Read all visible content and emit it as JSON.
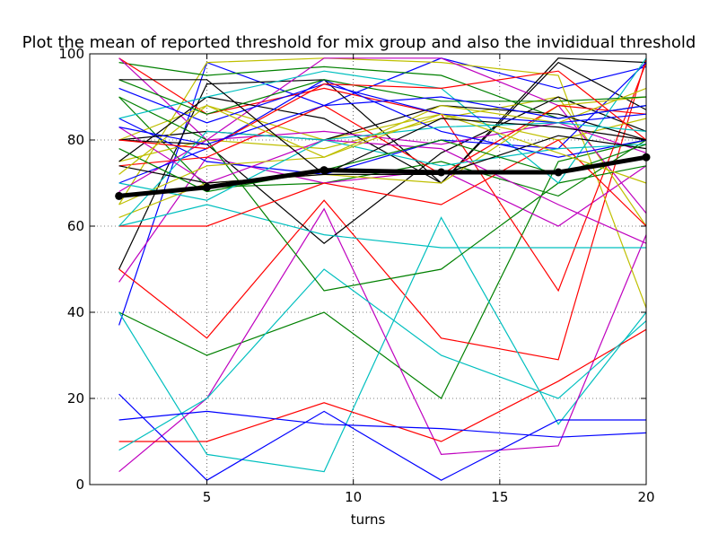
{
  "chart_data": {
    "type": "line",
    "title": "Plot the mean of reported threshold for mix group and also the invididual threshold",
    "xlabel": "turns",
    "ylabel": "",
    "xlim": [
      1,
      20
    ],
    "ylim": [
      0,
      100
    ],
    "x_ticks": [
      5,
      10,
      15,
      20
    ],
    "y_ticks": [
      0,
      20,
      40,
      60,
      80,
      100
    ],
    "grid": true,
    "legend": "none",
    "x": [
      2,
      5,
      9,
      13,
      17,
      20
    ],
    "series": [
      {
        "color": "#0000ff",
        "values": [
          37,
          98,
          88,
          99,
          92,
          97
        ]
      },
      {
        "color": "#008000",
        "values": [
          40,
          30,
          40,
          20,
          75,
          80
        ]
      },
      {
        "color": "#ff0000",
        "values": [
          50,
          34,
          66,
          34,
          29,
          99
        ]
      },
      {
        "color": "#00bfbf",
        "values": [
          40,
          7,
          3,
          62,
          14,
          40
        ]
      },
      {
        "color": "#bf00bf",
        "values": [
          3,
          20,
          64,
          7,
          9,
          58
        ]
      },
      {
        "color": "#bfbf00",
        "values": [
          65,
          98,
          99,
          98,
          95,
          41
        ]
      },
      {
        "color": "#000000",
        "values": [
          50,
          93,
          94,
          70,
          99,
          98
        ]
      },
      {
        "color": "#0000ff",
        "values": [
          21,
          1,
          17,
          1,
          15,
          15
        ]
      },
      {
        "color": "#008000",
        "values": [
          90,
          69,
          70,
          75,
          67,
          80
        ]
      },
      {
        "color": "#ff0000",
        "values": [
          10,
          10,
          19,
          10,
          24,
          36
        ]
      },
      {
        "color": "#00bfbf",
        "values": [
          8,
          20,
          50,
          30,
          20,
          38
        ]
      },
      {
        "color": "#bf00bf",
        "values": [
          47,
          76,
          70,
          73,
          60,
          74
        ]
      },
      {
        "color": "#bfbf00",
        "values": [
          75,
          80,
          78,
          85,
          90,
          60
        ]
      },
      {
        "color": "#000000",
        "values": [
          80,
          79,
          56,
          77,
          90,
          82
        ]
      },
      {
        "color": "#0000ff",
        "values": [
          15,
          17,
          14,
          13,
          11,
          12
        ]
      },
      {
        "color": "#008000",
        "values": [
          98,
          95,
          97,
          95,
          85,
          88
        ]
      },
      {
        "color": "#ff0000",
        "values": [
          99,
          86,
          92,
          86,
          45,
          98
        ]
      },
      {
        "color": "#00bfbf",
        "values": [
          60,
          65,
          58,
          55,
          55,
          55
        ]
      },
      {
        "color": "#bf00bf",
        "values": [
          99,
          80,
          99,
          99,
          88,
          63
        ]
      },
      {
        "color": "#bfbf00",
        "values": [
          80,
          88,
          80,
          86,
          80,
          85
        ]
      },
      {
        "color": "#000000",
        "values": [
          75,
          90,
          85,
          70,
          98,
          87
        ]
      },
      {
        "color": "#0000ff",
        "values": [
          85,
          75,
          72,
          80,
          78,
          98
        ]
      },
      {
        "color": "#008000",
        "values": [
          90,
          80,
          45,
          50,
          70,
          74
        ]
      },
      {
        "color": "#ff0000",
        "values": [
          60,
          60,
          70,
          65,
          80,
          60
        ]
      },
      {
        "color": "#00bfbf",
        "values": [
          85,
          90,
          96,
          92,
          70,
          99
        ]
      },
      {
        "color": "#bf00bf",
        "values": [
          68,
          80,
          82,
          79,
          84,
          77
        ]
      },
      {
        "color": "#bfbf00",
        "values": [
          62,
          70,
          72,
          70,
          88,
          90
        ]
      },
      {
        "color": "#000000",
        "values": [
          80,
          82,
          80,
          88,
          86,
          80
        ]
      },
      {
        "color": "#0000ff",
        "values": [
          70,
          78,
          94,
          82,
          76,
          80
        ]
      },
      {
        "color": "#008000",
        "values": [
          94,
          86,
          94,
          89,
          89,
          90
        ]
      },
      {
        "color": "#ff0000",
        "values": [
          74,
          76,
          88,
          72,
          88,
          86
        ]
      },
      {
        "color": "#00bfbf",
        "values": [
          60,
          82,
          80,
          74,
          78,
          79
        ]
      },
      {
        "color": "#bf00bf",
        "values": [
          83,
          70,
          80,
          78,
          65,
          56
        ]
      },
      {
        "color": "#bfbf00",
        "values": [
          65,
          74,
          76,
          88,
          84,
          92
        ]
      },
      {
        "color": "#000000",
        "values": [
          74,
          70,
          72,
          72,
          81,
          78
        ]
      },
      {
        "color": "#0000ff",
        "values": [
          92,
          84,
          93,
          86,
          84,
          86
        ]
      },
      {
        "color": "#008000",
        "values": [
          78,
          68,
          73,
          80,
          72,
          79
        ]
      },
      {
        "color": "#ff0000",
        "values": [
          80,
          78,
          93,
          92,
          96,
          80
        ]
      },
      {
        "color": "#00bfbf",
        "values": [
          70,
          66,
          80,
          83,
          84,
          82
        ]
      },
      {
        "color": "#bfbf00",
        "values": [
          72,
          88,
          76,
          86,
          77,
          70
        ]
      },
      {
        "color": "#000000",
        "values": [
          94,
          94,
          72,
          85,
          83,
          80
        ]
      },
      {
        "color": "#0000ff",
        "values": [
          83,
          79,
          88,
          90,
          85,
          88
        ]
      }
    ],
    "mean": {
      "color": "#000000",
      "values": [
        67,
        69,
        73,
        72.5,
        72.5,
        76
      ]
    }
  }
}
